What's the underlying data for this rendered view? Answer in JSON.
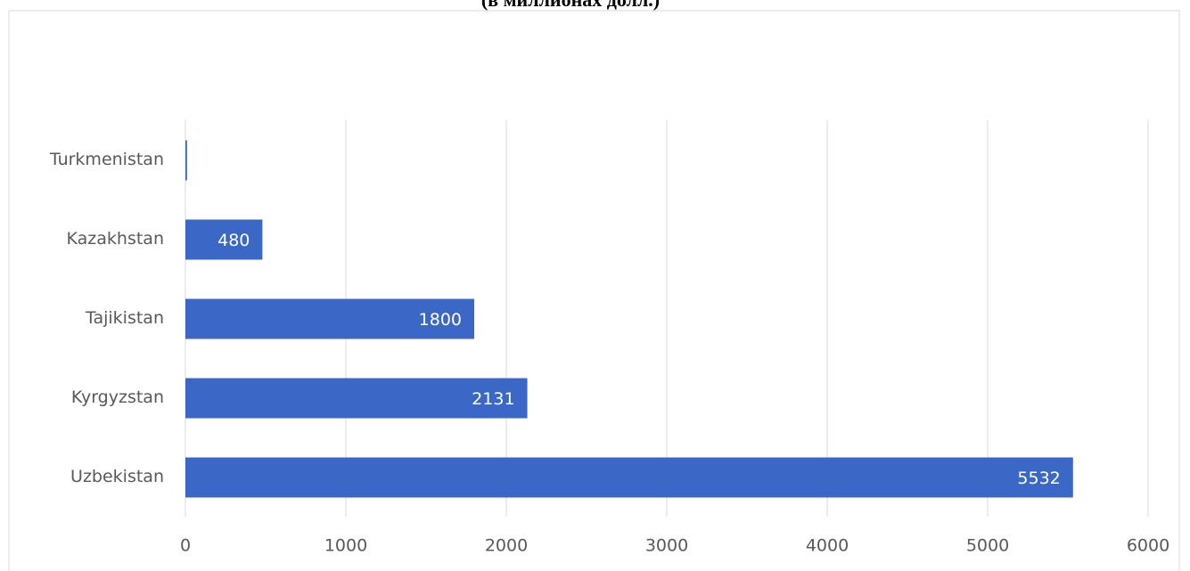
{
  "chart_data": {
    "type": "bar",
    "orientation": "horizontal",
    "title": "(в миллионах долл.)",
    "categories": [
      "Turkmenistan",
      "Kazakhstan",
      "Tajikistan",
      "Kyrgyzstan",
      "Uzbekistan"
    ],
    "values": [
      10,
      480,
      1800,
      2131,
      5532
    ],
    "color": "#3b68c6",
    "xlim": [
      0,
      6000
    ],
    "xticks": [
      0,
      1000,
      2000,
      3000,
      4000,
      5000,
      6000
    ],
    "grid": true
  }
}
